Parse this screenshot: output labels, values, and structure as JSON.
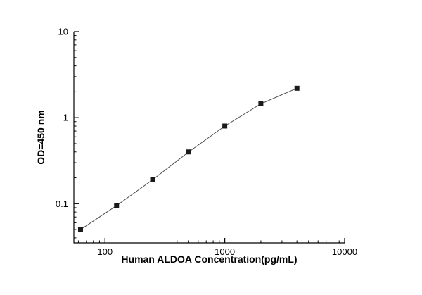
{
  "page": {
    "background": "#ffffff"
  },
  "chart_data": {
    "type": "line",
    "title": "",
    "xlabel": "Human ALDOA Concentration(pg/mL)",
    "ylabel": "OD=450 nm",
    "x": [
      62.5,
      125,
      250,
      500,
      1000,
      2000,
      4000
    ],
    "y": [
      0.05,
      0.095,
      0.19,
      0.4,
      0.8,
      1.45,
      2.2
    ],
    "x_scale": "log",
    "y_scale": "log",
    "xlim": [
      55,
      10000
    ],
    "ylim": [
      0.035,
      10
    ],
    "x_ticks": {
      "values": [
        100,
        1000,
        10000
      ],
      "labels": [
        "100",
        "1000",
        "10000"
      ]
    },
    "y_ticks": {
      "values": [
        0.1,
        1,
        10
      ],
      "labels": [
        "0.1",
        "1",
        "10"
      ]
    },
    "marker": "filled-square",
    "marker_size": 7,
    "marker_color": "#1a1a1a",
    "line_color": "#4d4d4d",
    "axis_color": "#000000",
    "grid": false,
    "legend": null
  }
}
